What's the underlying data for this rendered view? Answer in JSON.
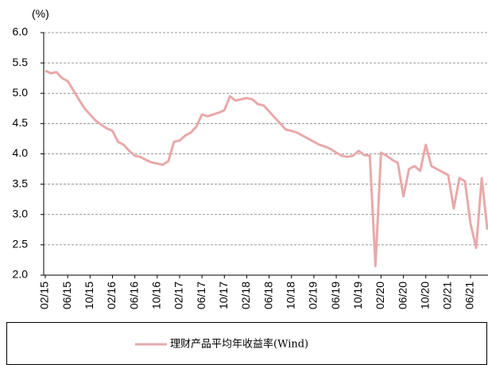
{
  "chart_data": {
    "type": "line",
    "y_label": "(%)",
    "categories": [
      "02/15",
      null,
      null,
      null,
      "06/15",
      null,
      null,
      null,
      "10/15",
      null,
      null,
      null,
      "02/16",
      null,
      null,
      null,
      "06/16",
      null,
      null,
      null,
      "10/16",
      null,
      null,
      null,
      "02/17",
      null,
      null,
      null,
      "06/17",
      null,
      null,
      null,
      "10/17",
      null,
      null,
      null,
      "02/18",
      null,
      null,
      null,
      "06/18",
      null,
      null,
      null,
      "10/18",
      null,
      null,
      null,
      "02/19",
      null,
      null,
      null,
      "06/19",
      null,
      null,
      null,
      "10/19",
      null,
      null,
      null,
      "02/20",
      null,
      null,
      null,
      "06/20",
      null,
      null,
      null,
      "10/20",
      null,
      null,
      null,
      "02/21",
      null,
      null,
      null,
      "06/21",
      null,
      null,
      null
    ],
    "series": [
      {
        "name": "理财产品平均年收益率(Wind)",
        "color": "#e8a9a9",
        "values": [
          5.37,
          5.33,
          5.35,
          5.25,
          5.2,
          5.05,
          4.9,
          4.75,
          4.65,
          4.55,
          4.48,
          4.42,
          4.38,
          4.2,
          4.15,
          4.05,
          3.97,
          3.95,
          3.9,
          3.86,
          3.84,
          3.82,
          3.88,
          4.2,
          4.22,
          4.3,
          4.35,
          4.45,
          4.65,
          4.62,
          4.65,
          4.68,
          4.72,
          4.95,
          4.88,
          4.9,
          4.92,
          4.9,
          4.82,
          4.8,
          4.7,
          4.6,
          4.5,
          4.4,
          4.38,
          4.35,
          4.3,
          4.25,
          4.2,
          4.15,
          4.12,
          4.08,
          4.02,
          3.97,
          3.95,
          3.97,
          4.05,
          3.98,
          3.97,
          2.15,
          4.02,
          3.97,
          3.9,
          3.85,
          3.3,
          3.75,
          3.8,
          3.72,
          4.15,
          3.8,
          3.75,
          3.7,
          3.65,
          3.1,
          3.6,
          3.55,
          2.85,
          2.45,
          3.6,
          2.75
        ]
      }
    ],
    "ylim": [
      2,
      6
    ],
    "yticks": [
      {
        "value": 2,
        "label": "2.0"
      },
      {
        "value": 2.5,
        "label": "2.5"
      },
      {
        "value": 3,
        "label": "3.0"
      },
      {
        "value": 3.5,
        "label": "3.5"
      },
      {
        "value": 4,
        "label": "4.0"
      },
      {
        "value": 4.5,
        "label": "4.5"
      },
      {
        "value": 5,
        "label": "5.0"
      },
      {
        "value": 5.5,
        "label": "5.5"
      },
      {
        "value": 6,
        "label": "6.0"
      }
    ],
    "grid": true
  }
}
